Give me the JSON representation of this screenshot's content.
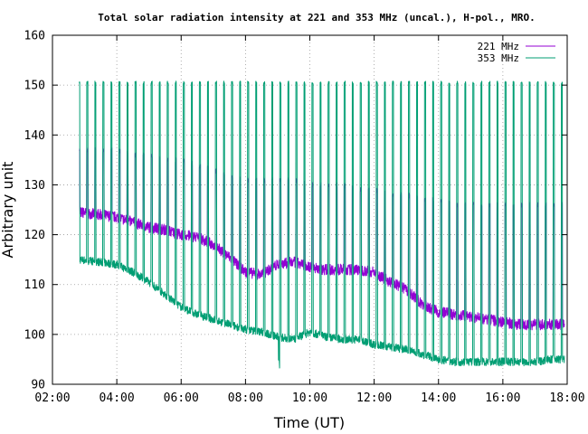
{
  "chart_data": {
    "type": "line",
    "title": "Total solar radiation intensity at 221 and 353 MHz (uncal.), H-pol., MRO.",
    "xlabel": "Time (UT)",
    "ylabel": "Arbitrary unit",
    "xlim": [
      "02:00",
      "18:00"
    ],
    "ylim": [
      90,
      160
    ],
    "xticks": [
      "02:00",
      "04:00",
      "06:00",
      "08:00",
      "10:00",
      "12:00",
      "14:00",
      "16:00",
      "18:00"
    ],
    "yticks": [
      90,
      100,
      110,
      120,
      130,
      140,
      150,
      160
    ],
    "grid": true,
    "legend_position": "top-right",
    "series": [
      {
        "name": "221 MHz",
        "color": "#9400d3",
        "baseline_points": [
          [
            "02:50",
            124.5
          ],
          [
            "03:30",
            124.0
          ],
          [
            "04:00",
            123.5
          ],
          [
            "04:30",
            122.5
          ],
          [
            "05:00",
            121.5
          ],
          [
            "05:30",
            121.0
          ],
          [
            "06:00",
            120.0
          ],
          [
            "06:30",
            119.5
          ],
          [
            "07:00",
            118.0
          ],
          [
            "07:30",
            115.5
          ],
          [
            "08:00",
            112.5
          ],
          [
            "08:30",
            112.0
          ],
          [
            "09:00",
            114.0
          ],
          [
            "09:30",
            114.5
          ],
          [
            "10:00",
            113.5
          ],
          [
            "10:30",
            113.0
          ],
          [
            "11:00",
            113.0
          ],
          [
            "11:30",
            113.0
          ],
          [
            "12:00",
            112.5
          ],
          [
            "12:30",
            110.5
          ],
          [
            "13:00",
            109.0
          ],
          [
            "13:30",
            106.0
          ],
          [
            "14:00",
            104.5
          ],
          [
            "14:30",
            104.0
          ],
          [
            "15:00",
            103.5
          ],
          [
            "15:30",
            103.0
          ],
          [
            "16:00",
            102.5
          ],
          [
            "16:30",
            102.0
          ],
          [
            "17:00",
            102.0
          ],
          [
            "17:30",
            102.0
          ],
          [
            "18:00",
            102.0
          ]
        ],
        "calibration_peaks": [
          [
            "02:50",
            137
          ],
          [
            "03:30",
            137
          ],
          [
            "04:00",
            137
          ],
          [
            "04:30",
            136
          ],
          [
            "05:00",
            136
          ],
          [
            "05:30",
            135
          ],
          [
            "06:00",
            135
          ],
          [
            "06:30",
            134
          ],
          [
            "07:00",
            133
          ],
          [
            "07:30",
            132
          ],
          [
            "08:00",
            131
          ],
          [
            "08:30",
            131
          ],
          [
            "09:00",
            131
          ],
          [
            "09:30",
            131
          ],
          [
            "10:00",
            130
          ],
          [
            "10:30",
            130
          ],
          [
            "11:00",
            130
          ],
          [
            "11:30",
            129
          ],
          [
            "12:00",
            129
          ],
          [
            "12:30",
            128
          ],
          [
            "13:00",
            128
          ],
          [
            "13:30",
            127
          ],
          [
            "14:00",
            127
          ],
          [
            "14:30",
            126
          ],
          [
            "15:00",
            126
          ],
          [
            "15:30",
            126
          ],
          [
            "16:00",
            126
          ],
          [
            "16:30",
            126
          ],
          [
            "17:00",
            126
          ],
          [
            "17:30",
            126
          ],
          [
            "18:00",
            126
          ]
        ]
      },
      {
        "name": "353 MHz",
        "color": "#009e73",
        "baseline_points": [
          [
            "02:50",
            115.0
          ],
          [
            "03:30",
            114.5
          ],
          [
            "04:00",
            114.0
          ],
          [
            "04:30",
            112.5
          ],
          [
            "05:00",
            110.5
          ],
          [
            "05:30",
            108.0
          ],
          [
            "06:00",
            105.5
          ],
          [
            "06:30",
            104.0
          ],
          [
            "07:00",
            103.0
          ],
          [
            "07:30",
            102.0
          ],
          [
            "08:00",
            101.0
          ],
          [
            "08:30",
            100.5
          ],
          [
            "09:00",
            99.5
          ],
          [
            "09:30",
            99.0
          ],
          [
            "10:00",
            100.5
          ],
          [
            "10:30",
            99.5
          ],
          [
            "11:00",
            99.0
          ],
          [
            "11:30",
            99.0
          ],
          [
            "12:00",
            98.0
          ],
          [
            "12:30",
            97.5
          ],
          [
            "13:00",
            97.0
          ],
          [
            "13:30",
            96.0
          ],
          [
            "14:00",
            95.0
          ],
          [
            "14:30",
            94.5
          ],
          [
            "15:00",
            94.5
          ],
          [
            "15:30",
            94.5
          ],
          [
            "16:00",
            94.5
          ],
          [
            "16:30",
            94.5
          ],
          [
            "17:00",
            94.5
          ],
          [
            "17:30",
            95.0
          ],
          [
            "18:00",
            95.0
          ]
        ],
        "calibration_peak_value": 150.5,
        "calibration_interval_minutes": 15,
        "calibration_start": "02:50",
        "calibration_end": "17:55"
      }
    ]
  }
}
